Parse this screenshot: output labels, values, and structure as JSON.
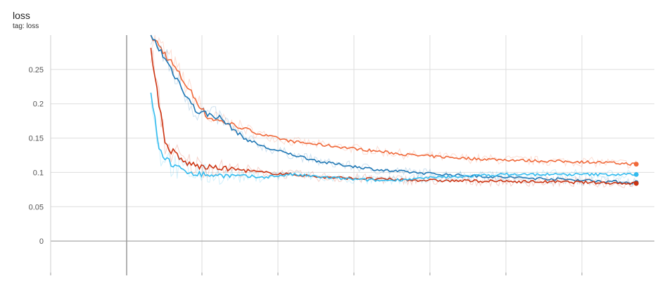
{
  "card": {
    "title": "loss",
    "tag": "tag: loss"
  },
  "chart_data": {
    "type": "line",
    "title": "loss",
    "subtitle": "tag: loss",
    "xlabel": "",
    "ylabel": "",
    "x_ticks": [],
    "yticks": [
      0,
      0.05,
      0.1,
      0.15,
      0.2,
      0.25
    ],
    "ytick_labels": [
      "0",
      "0.05",
      "0.1",
      "0.15",
      "0.2",
      "0.25"
    ],
    "xlim": [
      0,
      1
    ],
    "ylim": [
      -0.05,
      0.3
    ],
    "grid": true,
    "series": [
      {
        "color": "#f0693a",
        "points": [
          [
            0.166,
            0.3
          ],
          [
            0.2,
            0.26
          ],
          [
            0.26,
            0.18
          ],
          [
            0.3,
            0.17
          ],
          [
            0.35,
            0.155
          ],
          [
            0.4,
            0.145
          ],
          [
            0.5,
            0.135
          ],
          [
            0.6,
            0.125
          ],
          [
            0.7,
            0.12
          ],
          [
            0.8,
            0.117
          ],
          [
            0.9,
            0.115
          ],
          [
            0.97,
            0.112
          ]
        ],
        "final": 0.112
      },
      {
        "color": "#1f77b4",
        "points": [
          [
            0.166,
            0.3
          ],
          [
            0.2,
            0.25
          ],
          [
            0.24,
            0.19
          ],
          [
            0.28,
            0.18
          ],
          [
            0.32,
            0.15
          ],
          [
            0.36,
            0.135
          ],
          [
            0.45,
            0.115
          ],
          [
            0.55,
            0.103
          ],
          [
            0.65,
            0.097
          ],
          [
            0.75,
            0.093
          ],
          [
            0.85,
            0.09
          ],
          [
            0.97,
            0.085
          ]
        ],
        "final": 0.085
      },
      {
        "color": "#cc3311",
        "points": [
          [
            0.166,
            0.28
          ],
          [
            0.19,
            0.14
          ],
          [
            0.22,
            0.115
          ],
          [
            0.25,
            0.108
          ],
          [
            0.3,
            0.105
          ],
          [
            0.35,
            0.1
          ],
          [
            0.4,
            0.097
          ],
          [
            0.45,
            0.093
          ],
          [
            0.55,
            0.09
          ],
          [
            0.65,
            0.088
          ],
          [
            0.75,
            0.087
          ],
          [
            0.85,
            0.086
          ],
          [
            0.97,
            0.084
          ]
        ],
        "final": 0.084
      },
      {
        "color": "#33bbee",
        "points": [
          [
            0.166,
            0.22
          ],
          [
            0.18,
            0.13
          ],
          [
            0.21,
            0.105
          ],
          [
            0.25,
            0.097
          ],
          [
            0.3,
            0.095
          ],
          [
            0.35,
            0.093
          ],
          [
            0.4,
            0.097
          ],
          [
            0.45,
            0.093
          ],
          [
            0.5,
            0.09
          ],
          [
            0.55,
            0.088
          ],
          [
            0.65,
            0.093
          ],
          [
            0.75,
            0.097
          ],
          [
            0.85,
            0.097
          ],
          [
            0.97,
            0.097
          ]
        ],
        "final": 0.097
      }
    ]
  }
}
